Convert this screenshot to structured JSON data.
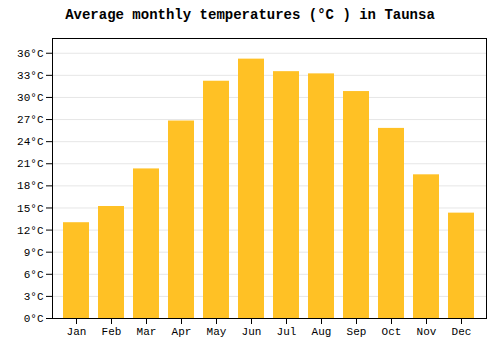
{
  "chart_data": {
    "type": "bar",
    "title": "Average monthly temperatures (°C ) in Taunsa",
    "categories": [
      "Jan",
      "Feb",
      "Mar",
      "Apr",
      "May",
      "Jun",
      "Jul",
      "Aug",
      "Sep",
      "Oct",
      "Nov",
      "Dec"
    ],
    "values": [
      13.0,
      15.2,
      20.3,
      26.8,
      32.2,
      35.2,
      33.5,
      33.2,
      30.8,
      25.8,
      19.5,
      14.3
    ],
    "color": "#FFC125",
    "ylim": [
      0,
      38
    ],
    "yticks": [
      {
        "value": 0,
        "label": "0°C"
      },
      {
        "value": 3,
        "label": "3°C"
      },
      {
        "value": 6,
        "label": "6°C"
      },
      {
        "value": 9,
        "label": "9°C"
      },
      {
        "value": 12,
        "label": "12°C"
      },
      {
        "value": 15,
        "label": "15°C"
      },
      {
        "value": 18,
        "label": "18°C"
      },
      {
        "value": 21,
        "label": "21°C"
      },
      {
        "value": 24,
        "label": "24°C"
      },
      {
        "value": 27,
        "label": "27°C"
      },
      {
        "value": 30,
        "label": "30°C"
      },
      {
        "value": 33,
        "label": "33°C"
      },
      {
        "value": 36,
        "label": "36°C"
      }
    ],
    "grid": true
  }
}
